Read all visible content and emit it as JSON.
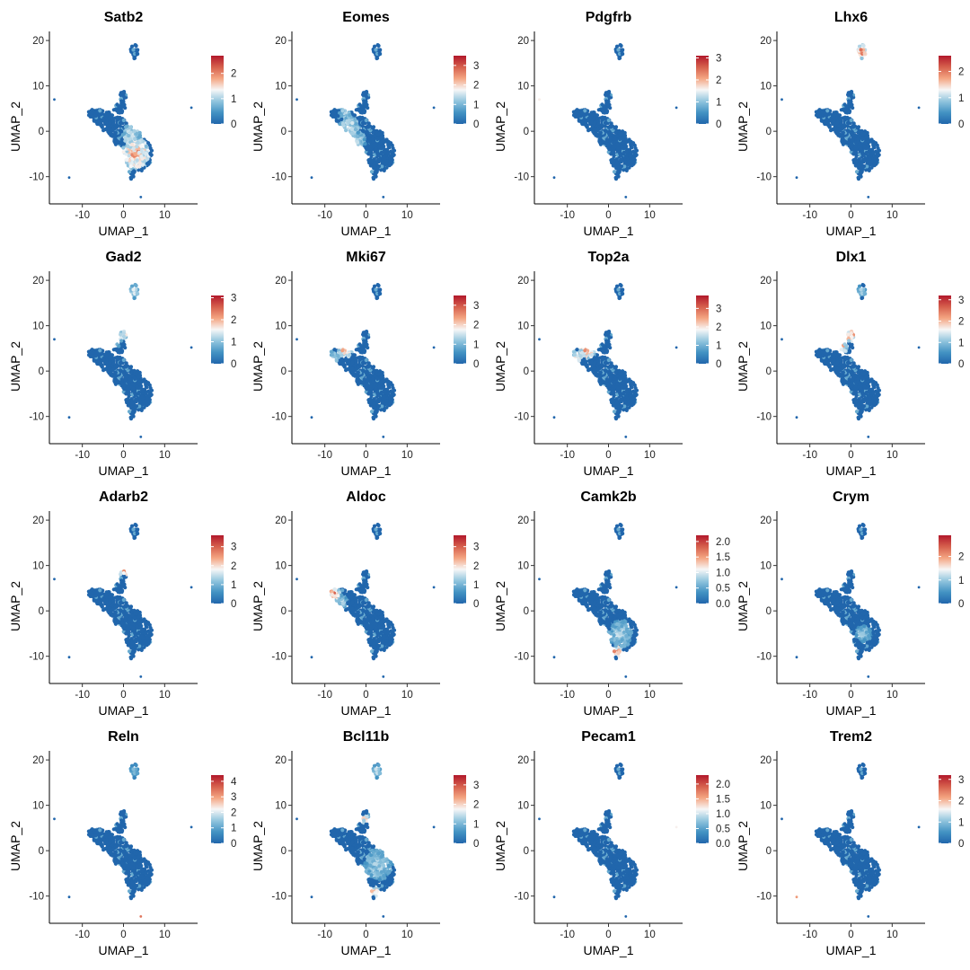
{
  "figure": {
    "x_label": "UMAP_1",
    "y_label": "UMAP_2",
    "x_ticks": [
      -10,
      0,
      10
    ],
    "y_ticks": [
      -10,
      0,
      10,
      20
    ],
    "colormap": [
      "#2166ac",
      "#4393c3",
      "#92c5de",
      "#f7f7f7",
      "#f4a582",
      "#d6604d",
      "#b2182b"
    ]
  },
  "chart_data": [
    {
      "type": "scatter",
      "title": "Satb2",
      "xlabel": "UMAP_1",
      "ylabel": "UMAP_2",
      "xlim": [
        -18,
        18
      ],
      "ylim": [
        -16,
        22
      ],
      "legend_ticks": [
        "0",
        "1",
        "2"
      ],
      "legend_max": 2.7,
      "hotspots": [
        {
          "x": 3,
          "y": -5,
          "r": 3.5,
          "level": 0.85
        },
        {
          "x": 2,
          "y": -1,
          "r": 2.5,
          "level": 0.6
        }
      ]
    },
    {
      "type": "scatter",
      "title": "Eomes",
      "xlabel": "UMAP_1",
      "ylabel": "UMAP_2",
      "xlim": [
        -18,
        18
      ],
      "ylim": [
        -16,
        22
      ],
      "legend_ticks": [
        "0",
        "1",
        "2",
        "3"
      ],
      "legend_max": 3.5,
      "hotspots": [
        {
          "x": -4,
          "y": 1,
          "r": 2.5,
          "level": 0.6
        },
        {
          "x": -2,
          "y": -2,
          "r": 2.0,
          "level": 0.5
        },
        {
          "x": -5,
          "y": 4,
          "r": 1.5,
          "level": 0.5
        }
      ]
    },
    {
      "type": "scatter",
      "title": "Pdgfrb",
      "xlabel": "UMAP_1",
      "ylabel": "UMAP_2",
      "xlim": [
        -18,
        18
      ],
      "ylim": [
        -16,
        22
      ],
      "legend_ticks": [
        "0",
        "1",
        "2",
        "3"
      ],
      "legend_max": 3.1,
      "hotspots": [
        {
          "x": -17,
          "y": 7,
          "r": 0.8,
          "level": 1.0
        }
      ]
    },
    {
      "type": "scatter",
      "title": "Lhx6",
      "xlabel": "UMAP_1",
      "ylabel": "UMAP_2",
      "xlim": [
        -18,
        18
      ],
      "ylim": [
        -16,
        22
      ],
      "legend_ticks": [
        "0",
        "1",
        "2"
      ],
      "legend_max": 2.6,
      "hotspots": [
        {
          "x": 2.5,
          "y": 17.5,
          "r": 1.8,
          "level": 0.9
        }
      ]
    },
    {
      "type": "scatter",
      "title": "Gad2",
      "xlabel": "UMAP_1",
      "ylabel": "UMAP_2",
      "xlim": [
        -18,
        18
      ],
      "ylim": [
        -16,
        22
      ],
      "legend_ticks": [
        "0",
        "1",
        "2",
        "3"
      ],
      "legend_max": 3.1,
      "hotspots": [
        {
          "x": 2.5,
          "y": 17.5,
          "r": 1.6,
          "level": 0.55
        },
        {
          "x": 0,
          "y": 8,
          "r": 1.5,
          "level": 0.65
        },
        {
          "x": -2,
          "y": 6,
          "r": 1.0,
          "level": 0.6
        }
      ]
    },
    {
      "type": "scatter",
      "title": "Mki67",
      "xlabel": "UMAP_1",
      "ylabel": "UMAP_2",
      "xlim": [
        -18,
        18
      ],
      "ylim": [
        -16,
        22
      ],
      "legend_ticks": [
        "0",
        "1",
        "2",
        "3"
      ],
      "legend_max": 3.5,
      "hotspots": [
        {
          "x": -5,
          "y": 5,
          "r": 2.0,
          "level": 0.85
        },
        {
          "x": -8,
          "y": 3,
          "r": 1.5,
          "level": 0.5
        }
      ]
    },
    {
      "type": "scatter",
      "title": "Top2a",
      "xlabel": "UMAP_1",
      "ylabel": "UMAP_2",
      "xlim": [
        -18,
        18
      ],
      "ylim": [
        -16,
        22
      ],
      "legend_ticks": [
        "0",
        "1",
        "2",
        "3"
      ],
      "legend_max": 3.7,
      "hotspots": [
        {
          "x": -5,
          "y": 5,
          "r": 2.2,
          "level": 0.9
        },
        {
          "x": -8,
          "y": 3,
          "r": 1.5,
          "level": 0.7
        }
      ]
    },
    {
      "type": "scatter",
      "title": "Dlx1",
      "xlabel": "UMAP_1",
      "ylabel": "UMAP_2",
      "xlim": [
        -18,
        18
      ],
      "ylim": [
        -16,
        22
      ],
      "legend_ticks": [
        "0",
        "1",
        "2",
        "3"
      ],
      "legend_max": 3.2,
      "hotspots": [
        {
          "x": 0,
          "y": 8,
          "r": 1.8,
          "level": 0.85
        },
        {
          "x": -2,
          "y": 5.5,
          "r": 1.5,
          "level": 0.75
        },
        {
          "x": 2.5,
          "y": 17.5,
          "r": 1.4,
          "level": 0.45
        }
      ]
    },
    {
      "type": "scatter",
      "title": "Adarb2",
      "xlabel": "UMAP_1",
      "ylabel": "UMAP_2",
      "xlim": [
        -18,
        18
      ],
      "ylim": [
        -16,
        22
      ],
      "legend_ticks": [
        "0",
        "1",
        "2",
        "3"
      ],
      "legend_max": 3.6,
      "hotspots": [
        {
          "x": 0,
          "y": 9,
          "r": 1.3,
          "level": 0.95
        }
      ]
    },
    {
      "type": "scatter",
      "title": "Aldoc",
      "xlabel": "UMAP_1",
      "ylabel": "UMAP_2",
      "xlim": [
        -18,
        18
      ],
      "ylim": [
        -16,
        22
      ],
      "legend_ticks": [
        "0",
        "1",
        "2",
        "3"
      ],
      "legend_max": 3.6,
      "hotspots": [
        {
          "x": -8,
          "y": 4,
          "r": 1.6,
          "level": 0.95
        },
        {
          "x": -6,
          "y": 2,
          "r": 1.5,
          "level": 0.5
        }
      ]
    },
    {
      "type": "scatter",
      "title": "Camk2b",
      "xlabel": "UMAP_1",
      "ylabel": "UMAP_2",
      "xlim": [
        -18,
        18
      ],
      "ylim": [
        -16,
        22
      ],
      "legend_ticks": [
        "0.0",
        "0.5",
        "1.0",
        "1.5",
        "2.0"
      ],
      "legend_max": 2.2,
      "hotspots": [
        {
          "x": 3,
          "y": -5,
          "r": 3.0,
          "level": 0.5
        },
        {
          "x": 2,
          "y": -9,
          "r": 1.2,
          "level": 0.95
        },
        {
          "x": -1,
          "y": -8,
          "r": 1.0,
          "level": 0.9
        }
      ]
    },
    {
      "type": "scatter",
      "title": "Crym",
      "xlabel": "UMAP_1",
      "ylabel": "UMAP_2",
      "xlim": [
        -18,
        18
      ],
      "ylim": [
        -16,
        22
      ],
      "legend_ticks": [
        "0",
        "1",
        "2"
      ],
      "legend_max": 2.9,
      "hotspots": [
        {
          "x": -1,
          "y": -7,
          "r": 1.8,
          "level": 0.8
        },
        {
          "x": 3,
          "y": -5,
          "r": 2.0,
          "level": 0.45
        }
      ]
    },
    {
      "type": "scatter",
      "title": "Reln",
      "xlabel": "UMAP_1",
      "ylabel": "UMAP_2",
      "xlim": [
        -18,
        18
      ],
      "ylim": [
        -16,
        22
      ],
      "legend_ticks": [
        "0",
        "1",
        "2",
        "3",
        "4"
      ],
      "legend_max": 4.4,
      "hotspots": [
        {
          "x": 4,
          "y": -14.5,
          "r": 0.8,
          "level": 1.0
        },
        {
          "x": 2.5,
          "y": 17.5,
          "r": 1.5,
          "level": 0.35
        }
      ]
    },
    {
      "type": "scatter",
      "title": "Bcl11b",
      "xlabel": "UMAP_1",
      "ylabel": "UMAP_2",
      "xlim": [
        -18,
        18
      ],
      "ylim": [
        -16,
        22
      ],
      "legend_ticks": [
        "0",
        "1",
        "2",
        "3"
      ],
      "legend_max": 3.5,
      "hotspots": [
        {
          "x": 3,
          "y": -3,
          "r": 3.5,
          "level": 0.5
        },
        {
          "x": 2.5,
          "y": 17.5,
          "r": 1.5,
          "level": 0.5
        },
        {
          "x": 2,
          "y": -9,
          "r": 1.2,
          "level": 0.8
        },
        {
          "x": 0,
          "y": 7,
          "r": 1.0,
          "level": 0.8
        }
      ]
    },
    {
      "type": "scatter",
      "title": "Pecam1",
      "xlabel": "UMAP_1",
      "ylabel": "UMAP_2",
      "xlim": [
        -18,
        18
      ],
      "ylim": [
        -16,
        22
      ],
      "legend_ticks": [
        "0.0",
        "0.5",
        "1.0",
        "1.5",
        "2.0"
      ],
      "legend_max": 2.3,
      "hotspots": [
        {
          "x": 16.5,
          "y": 5,
          "r": 0.8,
          "level": 1.0
        }
      ]
    },
    {
      "type": "scatter",
      "title": "Trem2",
      "xlabel": "UMAP_1",
      "ylabel": "UMAP_2",
      "xlim": [
        -18,
        18
      ],
      "ylim": [
        -16,
        22
      ],
      "legend_ticks": [
        "0",
        "1",
        "2",
        "3"
      ],
      "legend_max": 3.2,
      "hotspots": [
        {
          "x": -13,
          "y": -10,
          "r": 0.8,
          "level": 1.0
        }
      ]
    }
  ]
}
